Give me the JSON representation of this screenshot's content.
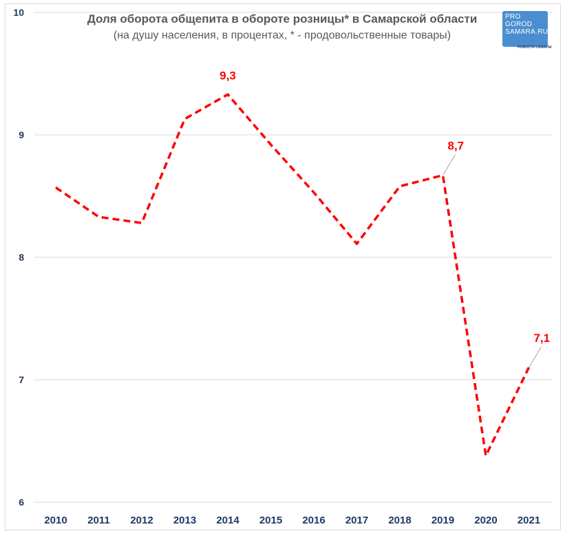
{
  "chart_data": {
    "type": "line",
    "title": "Доля оборота общепита в обороте розницы* в Самарской области",
    "subtitle": "(на душу населения, в процентах, * - продовольственные товары)",
    "categories": [
      "2010",
      "2011",
      "2012",
      "2013",
      "2014",
      "2015",
      "2016",
      "2017",
      "2018",
      "2019",
      "2020",
      "2021"
    ],
    "series": [
      {
        "values": [
          8.57,
          8.33,
          8.28,
          9.13,
          9.33,
          8.92,
          8.53,
          8.11,
          8.58,
          8.67,
          6.38,
          7.1
        ]
      }
    ],
    "ylim": [
      6,
      10
    ],
    "yticks": [
      6,
      7,
      8,
      9,
      10
    ],
    "grid": true,
    "line_color": "#ff0000",
    "line_style": "dashed",
    "data_labels": [
      {
        "index": 4,
        "text": "9,3"
      },
      {
        "index": 9,
        "text": "8,7"
      },
      {
        "index": 11,
        "text": "7,1"
      }
    ]
  },
  "logo": {
    "line1": "PRO",
    "line2": "GOROD",
    "line3": "SAMARA.RU",
    "tagline": "НОВОСТИ САМАРЫ"
  },
  "colors": {
    "axis_text": "#1f3864",
    "title_text": "#595959",
    "grid": "#d9d9d9"
  }
}
